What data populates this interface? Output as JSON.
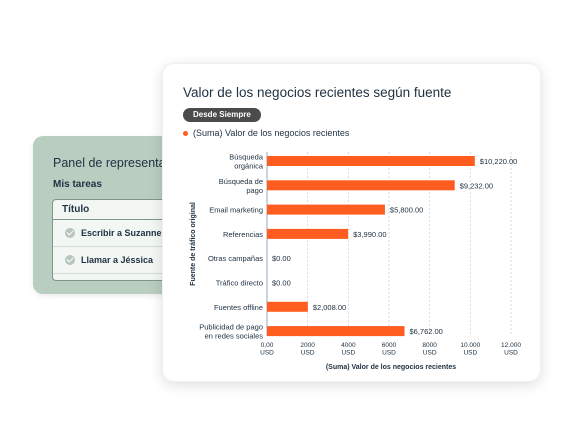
{
  "task_panel": {
    "title": "Panel de representant",
    "subtitle": "Mis tareas",
    "column_header": "Título",
    "tasks": [
      {
        "label": "Escribir a Suzanne"
      },
      {
        "label": "Llamar a Jéssica"
      }
    ]
  },
  "card": {
    "title": "Valor de los negocios recientes según fuente",
    "range_badge": "Desde Siempre",
    "legend_label": "(Suma) Valor de los negocios recientes"
  },
  "colors": {
    "bar": "#ff5c1f",
    "grid": "#c9d3dc",
    "text": "#213343"
  },
  "chart_data": {
    "type": "bar",
    "orientation": "horizontal",
    "categories": [
      [
        "Búsqueda",
        "orgánica"
      ],
      [
        "Búsqueda de",
        "pago"
      ],
      [
        "Email marketing"
      ],
      [
        "Referencias"
      ],
      [
        "Otras campañas"
      ],
      [
        "Tráfico directo"
      ],
      [
        "Fuentes offline"
      ],
      [
        "Publicidad de pago",
        "en redes sociales"
      ]
    ],
    "series": [
      {
        "name": "(Suma) Valor de los negocios recientes",
        "values": [
          10220,
          9232,
          5800,
          3990,
          0,
          0,
          2008,
          6762
        ],
        "labels": [
          "$10,220.00",
          "$9,232.00",
          "$5,800.00",
          "$3,990.00",
          "$0.00",
          "$0.00",
          "$2,008.00",
          "$6,762.00"
        ]
      }
    ],
    "xlabel": "(Suma) Valor de los negocios recientes",
    "ylabel": "Fuente de tráfico original",
    "xlim": [
      0,
      12000
    ],
    "xticks": [
      0,
      2000,
      4000,
      6000,
      8000,
      10000,
      12000
    ],
    "xtick_labels": [
      [
        "0,00",
        "USD"
      ],
      [
        "2000",
        "USD"
      ],
      [
        "4000",
        "USD"
      ],
      [
        "6000",
        "USD"
      ],
      [
        "8000",
        "USD"
      ],
      [
        "10.000",
        "USD"
      ],
      [
        "12.000",
        "USD"
      ]
    ],
    "grid": true,
    "legend": "top-left"
  }
}
